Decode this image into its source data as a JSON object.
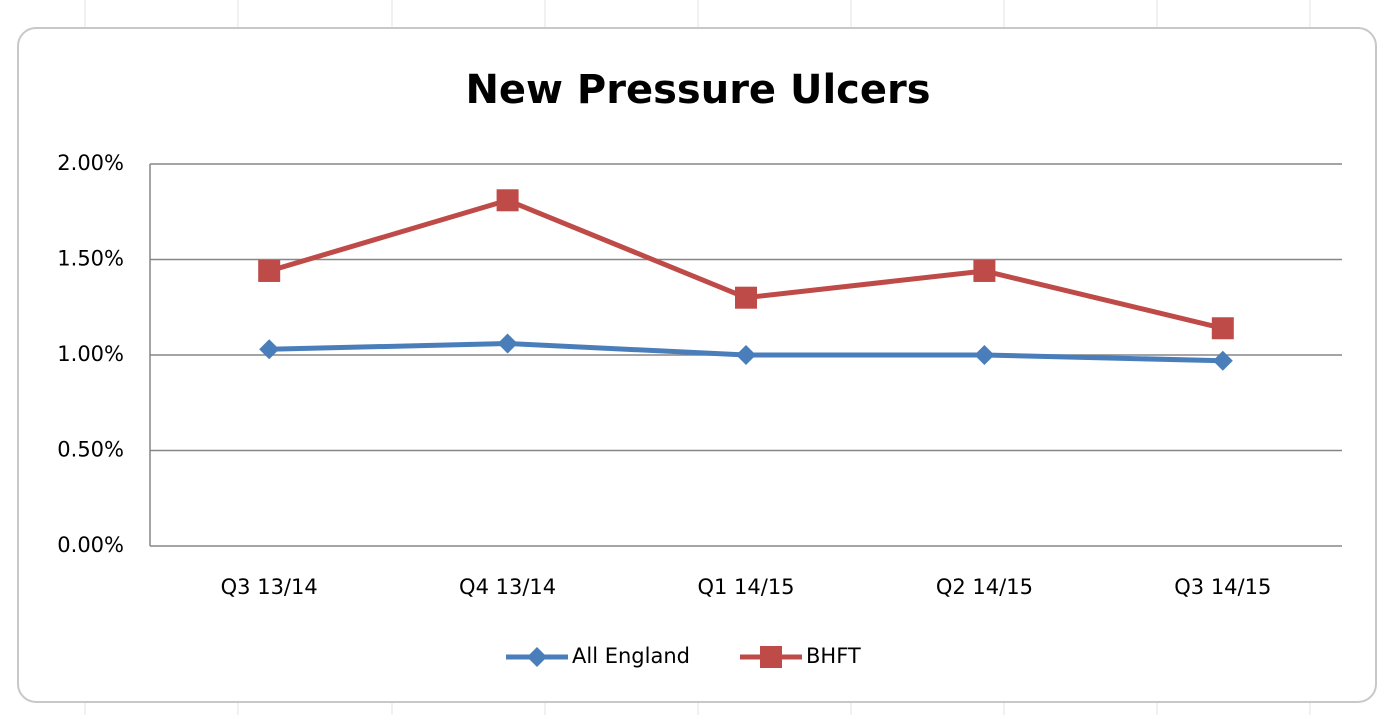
{
  "chart_data": {
    "type": "line",
    "title": "New Pressure Ulcers",
    "categories": [
      "Q3 13/14",
      "Q4 13/14",
      "Q1 14/15",
      "Q2 14/15",
      "Q3 14/15"
    ],
    "series": [
      {
        "name": "All England",
        "color": "#4a7ebb",
        "marker": "diamond",
        "values": [
          1.03,
          1.06,
          1.0,
          1.0,
          0.97
        ]
      },
      {
        "name": "BHFT",
        "color": "#be4b48",
        "marker": "square",
        "values": [
          1.44,
          1.81,
          1.3,
          1.44,
          1.14
        ]
      }
    ],
    "ylim": [
      0,
      2
    ],
    "yticks": [
      {
        "value": 0,
        "label": "0.00%"
      },
      {
        "value": 0.5,
        "label": "0.50%"
      },
      {
        "value": 1,
        "label": "1.00%"
      },
      {
        "value": 1.5,
        "label": "1.50%"
      },
      {
        "value": 2,
        "label": "2.00%"
      }
    ],
    "grid": true,
    "legend": "bottom"
  }
}
